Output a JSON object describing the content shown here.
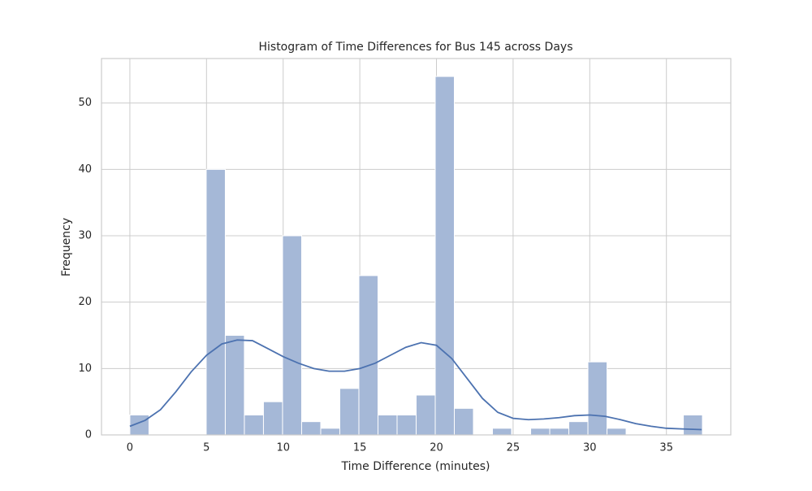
{
  "chart_data": {
    "type": "histogram",
    "title": "Histogram of Time Differences for Bus 145 across Days",
    "xlabel": "Time Difference (minutes)",
    "ylabel": "Frequency",
    "bins": [
      0,
      1.245,
      2.49,
      3.735,
      4.98,
      6.225,
      7.47,
      8.715,
      9.96,
      11.205,
      12.45,
      13.695,
      14.94,
      16.185,
      17.43,
      18.675,
      19.92,
      21.165,
      22.41,
      23.655,
      24.9,
      26.145,
      27.39,
      28.635,
      29.88,
      31.125,
      32.37,
      33.615,
      34.86,
      36.105,
      37.35
    ],
    "counts": [
      3,
      0,
      0,
      0,
      40,
      15,
      3,
      5,
      30,
      2,
      1,
      7,
      24,
      3,
      3,
      6,
      54,
      4,
      0,
      1,
      0,
      1,
      1,
      2,
      11,
      1,
      0,
      0,
      0,
      3
    ],
    "color": "#a5b8d7",
    "kde": {
      "color": "#4c72b0",
      "x": [
        0,
        1,
        2,
        3,
        4,
        5,
        6,
        7,
        8,
        9,
        10,
        11,
        12,
        13,
        14,
        15,
        16,
        17,
        18,
        19,
        20,
        21,
        22,
        23,
        24,
        25,
        26,
        27,
        28,
        29,
        30,
        31,
        32,
        33,
        34,
        35,
        36,
        37.3
      ],
      "values": [
        1.3,
        2.2,
        3.8,
        6.5,
        9.5,
        12.0,
        13.7,
        14.3,
        14.2,
        13.0,
        11.8,
        10.8,
        10.0,
        9.6,
        9.6,
        10.0,
        10.8,
        12.0,
        13.2,
        13.9,
        13.5,
        11.5,
        8.5,
        5.5,
        3.4,
        2.5,
        2.3,
        2.4,
        2.6,
        2.9,
        3.0,
        2.8,
        2.3,
        1.7,
        1.3,
        1.0,
        0.9,
        0.8
      ]
    },
    "xlim": [
      -1.85,
      39.2
    ],
    "ylim": [
      0,
      56.7
    ],
    "xticks": [
      0,
      5,
      10,
      15,
      20,
      25,
      30,
      35
    ],
    "yticks": [
      0,
      10,
      20,
      30,
      40,
      50
    ],
    "grid": true
  }
}
